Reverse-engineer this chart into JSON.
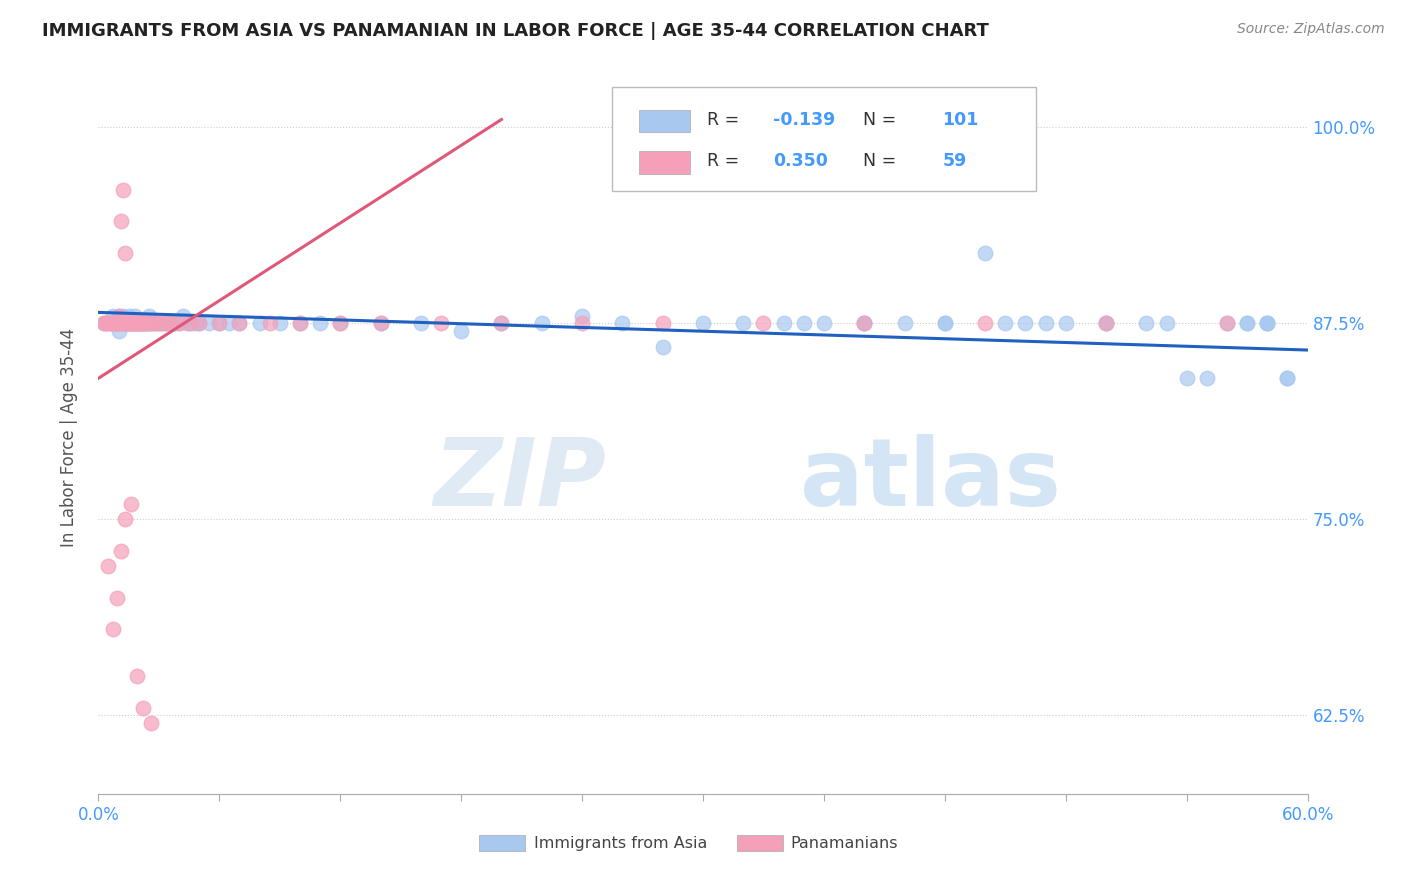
{
  "title": "IMMIGRANTS FROM ASIA VS PANAMANIAN IN LABOR FORCE | AGE 35-44 CORRELATION CHART",
  "source": "Source: ZipAtlas.com",
  "ylabel": "In Labor Force | Age 35-44",
  "yticks": [
    0.625,
    0.75,
    0.875,
    1.0
  ],
  "ytick_labels": [
    "62.5%",
    "75.0%",
    "87.5%",
    "100.0%"
  ],
  "xlim": [
    0.0,
    0.6
  ],
  "ylim": [
    0.575,
    1.03
  ],
  "legend_r_blue": "-0.139",
  "legend_n_blue": "101",
  "legend_r_pink": "0.350",
  "legend_n_pink": "59",
  "blue_color": "#A8C8F0",
  "pink_color": "#F4A0B8",
  "blue_line_color": "#2060C0",
  "pink_line_color": "#E05878",
  "title_color": "#222222",
  "tick_color_right": "#4499FF",
  "watermark_zip": "ZIP",
  "watermark_atlas": "atlas",
  "blue_scatter_x": [
    0.003,
    0.005,
    0.006,
    0.007,
    0.008,
    0.009,
    0.01,
    0.01,
    0.011,
    0.012,
    0.012,
    0.013,
    0.013,
    0.014,
    0.014,
    0.015,
    0.015,
    0.016,
    0.016,
    0.017,
    0.017,
    0.018,
    0.018,
    0.019,
    0.019,
    0.02,
    0.02,
    0.021,
    0.021,
    0.022,
    0.022,
    0.023,
    0.023,
    0.024,
    0.025,
    0.025,
    0.026,
    0.027,
    0.028,
    0.029,
    0.03,
    0.031,
    0.032,
    0.033,
    0.034,
    0.035,
    0.036,
    0.037,
    0.038,
    0.04,
    0.042,
    0.044,
    0.046,
    0.048,
    0.05,
    0.055,
    0.06,
    0.065,
    0.07,
    0.08,
    0.09,
    0.1,
    0.11,
    0.12,
    0.14,
    0.16,
    0.18,
    0.2,
    0.22,
    0.24,
    0.26,
    0.28,
    0.3,
    0.32,
    0.34,
    0.36,
    0.38,
    0.4,
    0.42,
    0.44,
    0.46,
    0.48,
    0.5,
    0.52,
    0.54,
    0.56,
    0.57,
    0.58,
    0.58,
    0.59,
    0.35,
    0.38,
    0.42,
    0.45,
    0.47,
    0.5,
    0.53,
    0.55,
    0.57,
    0.58,
    0.59
  ],
  "blue_scatter_y": [
    0.875,
    0.875,
    0.875,
    0.88,
    0.875,
    0.875,
    0.87,
    0.88,
    0.875,
    0.875,
    0.88,
    0.875,
    0.875,
    0.875,
    0.875,
    0.875,
    0.88,
    0.875,
    0.875,
    0.875,
    0.875,
    0.875,
    0.88,
    0.875,
    0.875,
    0.875,
    0.875,
    0.875,
    0.875,
    0.875,
    0.875,
    0.875,
    0.875,
    0.875,
    0.875,
    0.88,
    0.875,
    0.875,
    0.875,
    0.875,
    0.875,
    0.875,
    0.875,
    0.875,
    0.875,
    0.875,
    0.875,
    0.875,
    0.875,
    0.875,
    0.88,
    0.875,
    0.875,
    0.875,
    0.875,
    0.875,
    0.875,
    0.875,
    0.875,
    0.875,
    0.875,
    0.875,
    0.875,
    0.875,
    0.875,
    0.875,
    0.87,
    0.875,
    0.875,
    0.88,
    0.875,
    0.86,
    0.875,
    0.875,
    0.875,
    0.875,
    0.875,
    0.875,
    0.875,
    0.92,
    0.875,
    0.875,
    0.875,
    0.875,
    0.84,
    0.875,
    0.875,
    0.875,
    0.875,
    0.84,
    0.875,
    0.875,
    0.875,
    0.875,
    0.875,
    0.875,
    0.875,
    0.84,
    0.875,
    0.875,
    0.84
  ],
  "pink_scatter_x": [
    0.003,
    0.004,
    0.005,
    0.006,
    0.007,
    0.008,
    0.008,
    0.009,
    0.01,
    0.01,
    0.011,
    0.011,
    0.012,
    0.012,
    0.013,
    0.013,
    0.014,
    0.015,
    0.015,
    0.016,
    0.017,
    0.018,
    0.019,
    0.02,
    0.021,
    0.022,
    0.024,
    0.026,
    0.028,
    0.03,
    0.033,
    0.036,
    0.04,
    0.045,
    0.05,
    0.06,
    0.07,
    0.085,
    0.1,
    0.12,
    0.14,
    0.17,
    0.2,
    0.24,
    0.28,
    0.33,
    0.38,
    0.44,
    0.5,
    0.56,
    0.005,
    0.007,
    0.009,
    0.011,
    0.013,
    0.016,
    0.019,
    0.022,
    0.026
  ],
  "pink_scatter_y": [
    0.875,
    0.875,
    0.875,
    0.875,
    0.875,
    0.875,
    0.875,
    0.875,
    0.88,
    0.875,
    0.94,
    0.875,
    0.96,
    0.875,
    0.92,
    0.875,
    0.875,
    0.875,
    0.875,
    0.875,
    0.875,
    0.875,
    0.875,
    0.875,
    0.875,
    0.875,
    0.875,
    0.875,
    0.875,
    0.875,
    0.875,
    0.875,
    0.875,
    0.875,
    0.875,
    0.875,
    0.875,
    0.875,
    0.875,
    0.875,
    0.875,
    0.875,
    0.875,
    0.875,
    0.875,
    0.875,
    0.875,
    0.875,
    0.875,
    0.875,
    0.72,
    0.68,
    0.7,
    0.73,
    0.75,
    0.76,
    0.65,
    0.63,
    0.62
  ],
  "blue_line_x": [
    0.0,
    0.6
  ],
  "blue_line_y": [
    0.882,
    0.858
  ],
  "pink_line_x": [
    0.0,
    0.2
  ],
  "pink_line_y": [
    0.84,
    1.005
  ]
}
